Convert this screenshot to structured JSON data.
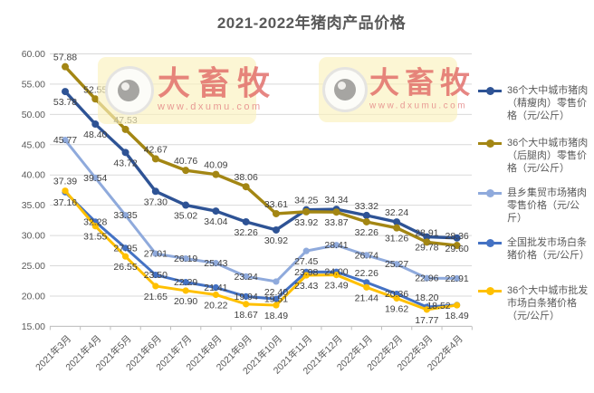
{
  "title": "2021-2022年猪肉产品价格",
  "watermark": {
    "brand": "大畜牧",
    "url": "www.dxumu.com"
  },
  "chart_data": {
    "type": "line",
    "title": "2021-2022年猪肉产品价格",
    "unit": "元/公斤",
    "categories": [
      "2021年3月",
      "2021年4月",
      "2021年5月",
      "2021年6月",
      "2021年7月",
      "2021年8月",
      "2021年9月",
      "2021年10月",
      "2021年11月",
      "2021年12月",
      "2022年1月",
      "2022年2月",
      "2022年3月",
      "2022年4月"
    ],
    "y_axis": {
      "min": 15,
      "max": 60,
      "step": 5,
      "tick_labels": [
        "15.00",
        "20.00",
        "25.00",
        "30.00",
        "35.00",
        "40.00",
        "45.00",
        "50.00",
        "55.00",
        "60.00"
      ]
    },
    "grid": true,
    "legend_position": "right",
    "series": [
      {
        "key": "lean-pork-retail",
        "name": "36个大中城市猪肉（精瘦肉）零售价格（元/公斤）",
        "color": "#2E5395",
        "values": [
          53.78,
          48.4,
          43.72,
          37.3,
          35.02,
          34.04,
          32.26,
          30.92,
          34.25,
          34.34,
          33.32,
          32.24,
          29.78,
          29.6
        ],
        "label_pos": [
          "b",
          "b",
          "b",
          "b",
          "b",
          "b",
          "b",
          "b",
          "a",
          "a",
          "a",
          "a",
          "b",
          "b"
        ]
      },
      {
        "key": "hind-leg-pork-retail",
        "name": "36个大中城市猪肉（后腿肉）零售价格（元/公斤）",
        "color": "#A38613",
        "values": [
          57.88,
          52.55,
          47.53,
          42.67,
          40.76,
          40.09,
          38.06,
          33.61,
          33.92,
          33.87,
          32.26,
          31.26,
          28.91,
          28.36
        ],
        "label_pos": [
          "a",
          "a",
          "a",
          "a",
          "a",
          "a",
          "a",
          "a",
          "b",
          "b",
          "b",
          "b",
          "a",
          "a"
        ]
      },
      {
        "key": "county-market-retail",
        "name": "县乡集贸市场猪肉零售价格（元/公斤）",
        "color": "#8FAADC",
        "values": [
          45.77,
          39.54,
          33.35,
          27.01,
          26.19,
          25.43,
          23.24,
          22.4,
          27.45,
          28.41,
          26.74,
          25.27,
          22.96,
          22.91
        ],
        "label_pos": [
          "c",
          "c",
          "c",
          "c",
          "c",
          "c",
          "c",
          "b",
          "b",
          "c",
          "c",
          "c",
          "c",
          "c"
        ]
      },
      {
        "key": "national-wholesale-carcass",
        "name": "全国批发市场白条猪价格（元/公斤）",
        "color": "#4472C4",
        "values": [
          37.16,
          32.28,
          27.95,
          23.5,
          22.29,
          21.41,
          19.94,
          19.51,
          23.98,
          24.0,
          22.26,
          20.36,
          18.2,
          18.52
        ],
        "label_pos": [
          "b",
          "c",
          "c",
          "c",
          "c",
          "c",
          "c",
          "c",
          "c",
          "c",
          "a",
          "c",
          "a",
          "l"
        ]
      },
      {
        "key": "city36-wholesale-carcass",
        "name": "36个大中城市批发市场白条猪价格（元/公斤）",
        "color": "#FFC000",
        "values": [
          37.39,
          31.55,
          26.55,
          21.65,
          20.9,
          20.22,
          18.67,
          18.49,
          23.43,
          23.49,
          21.44,
          19.62,
          17.77,
          18.49
        ],
        "label_pos": [
          "a",
          "b",
          "b",
          "b",
          "b",
          "b",
          "b",
          "b",
          "b",
          "b",
          "b",
          "b",
          "b",
          "b"
        ]
      }
    ]
  }
}
